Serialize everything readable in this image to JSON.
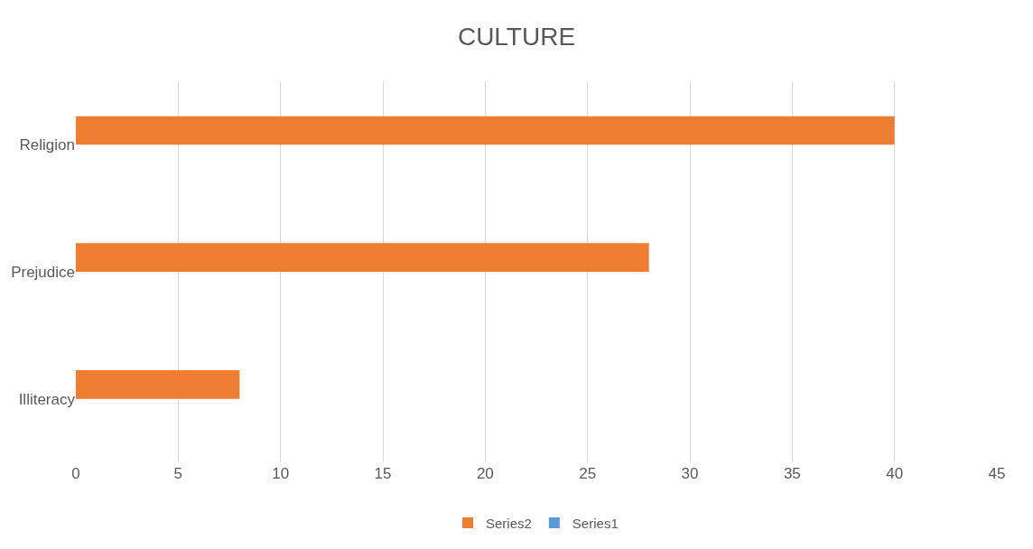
{
  "chart_data": {
    "type": "bar",
    "orientation": "horizontal",
    "title": "CULTURE",
    "categories": [
      "Religion",
      "Prejudice",
      "Illiteracy"
    ],
    "series": [
      {
        "name": "Series2",
        "color": "#ed7d31",
        "values": [
          40,
          28,
          8
        ]
      },
      {
        "name": "Series1",
        "color": "#5b9bd5",
        "values": [
          null,
          null,
          null
        ]
      }
    ],
    "xlim": [
      0,
      45
    ],
    "xticks": [
      0,
      5,
      10,
      15,
      20,
      25,
      30,
      35,
      40,
      45
    ],
    "grid": "x",
    "legend": "bottom"
  }
}
